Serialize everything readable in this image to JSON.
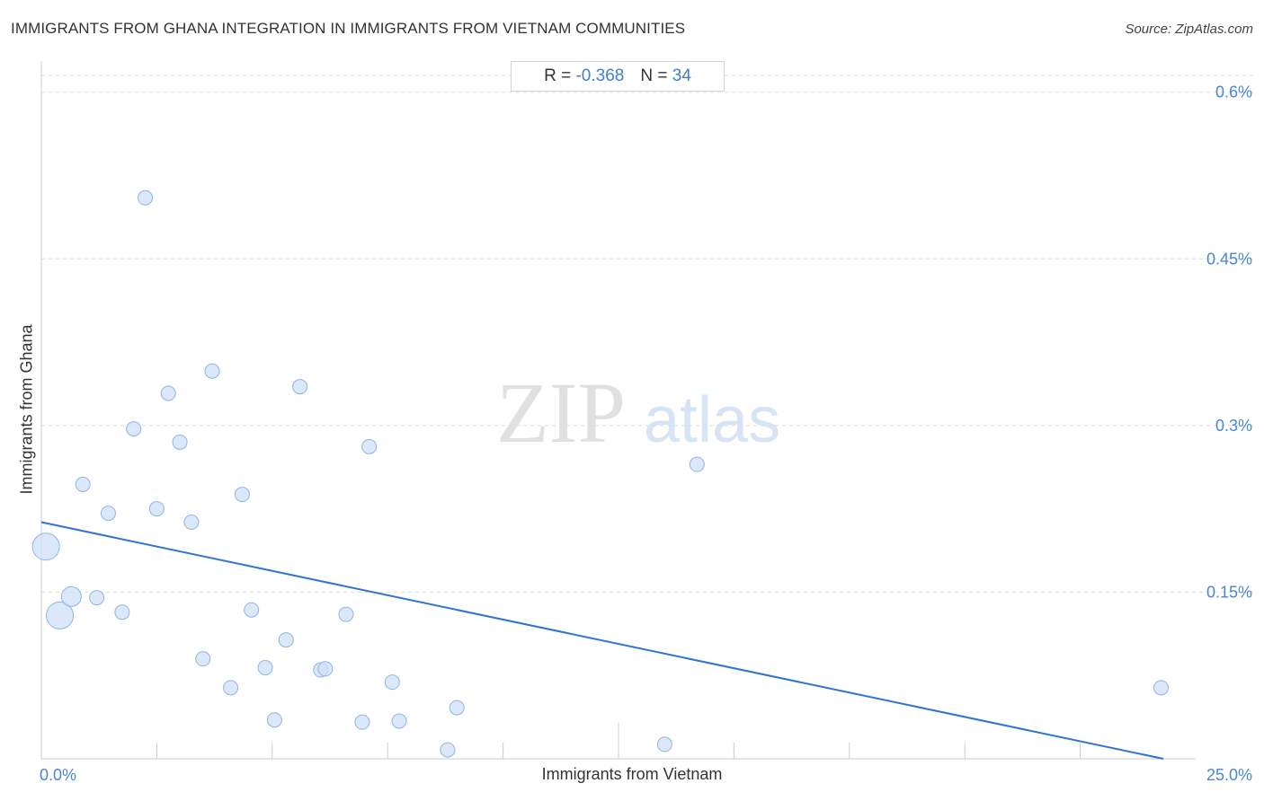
{
  "title": "IMMIGRANTS FROM GHANA INTEGRATION IN IMMIGRANTS FROM VIETNAM COMMUNITIES",
  "source": "Source: ZipAtlas.com",
  "stats": {
    "r_label": "R =",
    "r_value": "-0.368",
    "n_label": "N =",
    "n_value": "34"
  },
  "watermark": {
    "zip": "ZIP",
    "atlas": "atlas"
  },
  "colors": {
    "accent": "#3f7fd6",
    "point_fill": "#cfe0f7",
    "point_stroke": "#8fb4e6",
    "trend": "#2f74d0",
    "grid": "#dcdcdc"
  },
  "chart_data": {
    "type": "scatter",
    "title": "IMMIGRANTS FROM GHANA INTEGRATION IN IMMIGRANTS FROM VIETNAM COMMUNITIES",
    "xlabel": "Immigrants from Vietnam",
    "ylabel": "Immigrants from Ghana",
    "x_unit": "%",
    "y_unit": "%",
    "xlim": [
      0,
      25
    ],
    "ylim": [
      0,
      0.62
    ],
    "x_tick_labels": [
      {
        "value": 0,
        "label": "0.0%"
      },
      {
        "value": 25,
        "label": "25.0%"
      }
    ],
    "y_tick_labels": [
      {
        "value": 0.15,
        "label": "0.15%"
      },
      {
        "value": 0.3,
        "label": "0.3%"
      },
      {
        "value": 0.45,
        "label": "0.45%"
      },
      {
        "value": 0.6,
        "label": "0.6%"
      }
    ],
    "grid": true,
    "trend_line": {
      "x": [
        0,
        24.3
      ],
      "y": [
        0.213,
        0
      ]
    },
    "points": [
      {
        "x": 0.1,
        "y": 0.191,
        "size": "large"
      },
      {
        "x": 0.4,
        "y": 0.129,
        "size": "large"
      },
      {
        "x": 0.65,
        "y": 0.146,
        "size": "medium"
      },
      {
        "x": 0.9,
        "y": 0.247,
        "size": "small"
      },
      {
        "x": 1.2,
        "y": 0.145,
        "size": "small"
      },
      {
        "x": 1.45,
        "y": 0.221,
        "size": "small"
      },
      {
        "x": 1.75,
        "y": 0.132,
        "size": "small"
      },
      {
        "x": 2.0,
        "y": 0.297,
        "size": "small"
      },
      {
        "x": 2.25,
        "y": 0.505,
        "size": "small"
      },
      {
        "x": 2.5,
        "y": 0.225,
        "size": "small"
      },
      {
        "x": 2.75,
        "y": 0.329,
        "size": "small"
      },
      {
        "x": 3.0,
        "y": 0.285,
        "size": "small"
      },
      {
        "x": 3.25,
        "y": 0.213,
        "size": "small"
      },
      {
        "x": 3.5,
        "y": 0.09,
        "size": "small"
      },
      {
        "x": 3.7,
        "y": 0.349,
        "size": "small"
      },
      {
        "x": 4.1,
        "y": 0.064,
        "size": "small"
      },
      {
        "x": 4.35,
        "y": 0.238,
        "size": "small"
      },
      {
        "x": 4.55,
        "y": 0.134,
        "size": "small"
      },
      {
        "x": 4.85,
        "y": 0.082,
        "size": "small"
      },
      {
        "x": 5.05,
        "y": 0.035,
        "size": "small"
      },
      {
        "x": 5.3,
        "y": 0.107,
        "size": "small"
      },
      {
        "x": 5.6,
        "y": 0.335,
        "size": "small"
      },
      {
        "x": 6.05,
        "y": 0.08,
        "size": "small"
      },
      {
        "x": 6.15,
        "y": 0.081,
        "size": "small"
      },
      {
        "x": 6.6,
        "y": 0.13,
        "size": "small"
      },
      {
        "x": 6.95,
        "y": 0.033,
        "size": "small"
      },
      {
        "x": 7.1,
        "y": 0.281,
        "size": "small"
      },
      {
        "x": 7.6,
        "y": 0.069,
        "size": "small"
      },
      {
        "x": 7.75,
        "y": 0.034,
        "size": "small"
      },
      {
        "x": 8.8,
        "y": 0.008,
        "size": "small"
      },
      {
        "x": 9.0,
        "y": 0.046,
        "size": "small"
      },
      {
        "x": 13.5,
        "y": 0.013,
        "size": "small"
      },
      {
        "x": 14.2,
        "y": 0.265,
        "size": "small"
      },
      {
        "x": 24.25,
        "y": 0.064,
        "size": "small"
      }
    ]
  }
}
